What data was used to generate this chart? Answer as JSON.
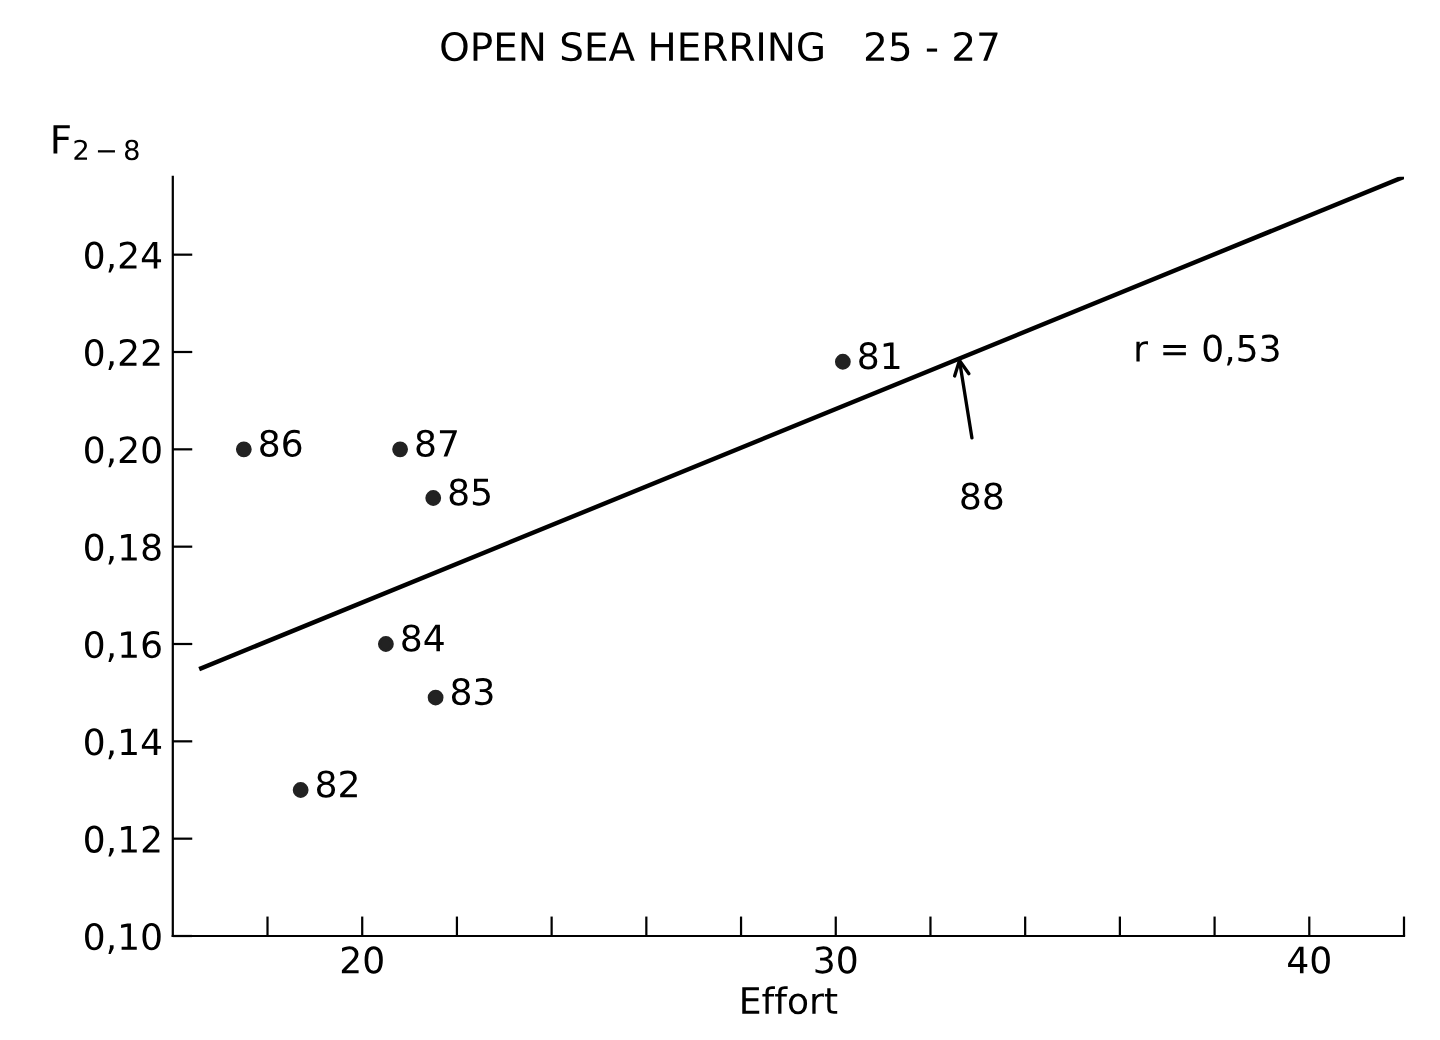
{
  "chart_data": {
    "type": "scatter",
    "title": "OPEN SEA HERRING   25 - 27",
    "xlabel": "Effort",
    "ylabel": "F$_{2−8}$",
    "x": [
      30.15,
      18.7,
      21.55,
      20.5,
      21.5,
      17.5,
      20.8
    ],
    "series": [
      {
        "color": "#222222",
        "values": [
          0.218,
          0.13,
          0.149,
          0.16,
          0.19,
          0.2,
          0.2
        ],
        "marker": "circle"
      },
      {
        "type": "line",
        "color": "#000000",
        "x": [
          16.6,
          42
        ],
        "values": [
          0.155,
          0.256
        ],
        "marker": "none",
        "line_style": "solid"
      }
    ],
    "annotations": [
      "r = 0,53",
      {
        "text": "88",
        "x": 32.6,
        "y": 0.219
      },
      {
        "text": "81",
        "x": 30.15,
        "y": 0.218
      },
      {
        "text": "82",
        "x": 18.7,
        "y": 0.13
      },
      {
        "text": "83",
        "x": 21.55,
        "y": 0.149
      },
      {
        "text": "84",
        "x": 20.5,
        "y": 0.16
      },
      {
        "text": "85",
        "x": 21.5,
        "y": 0.19
      },
      {
        "text": "86",
        "x": 17.5,
        "y": 0.2
      },
      {
        "text": "87",
        "x": 20.8,
        "y": 0.2
      }
    ],
    "xlim": [
      16,
      42
    ],
    "ylim": [
      0.1,
      0.256
    ],
    "xticks": [
      {
        "value": 18,
        "label": null
      },
      20,
      {
        "value": 22,
        "label": null
      },
      {
        "value": 24,
        "label": null
      },
      {
        "value": 26,
        "label": null
      },
      {
        "value": 28,
        "label": null
      },
      30,
      {
        "value": 32,
        "label": null
      },
      {
        "value": 34,
        "label": null
      },
      {
        "value": 36,
        "label": null
      },
      {
        "value": 38,
        "label": null
      },
      40,
      {
        "value": 42,
        "label": null
      }
    ],
    "yticks": [
      {
        "value": 0.1,
        "label": "0,10"
      },
      {
        "value": 0.12,
        "label": "0,12"
      },
      {
        "value": 0.14,
        "label": "0,14"
      },
      {
        "value": 0.16,
        "label": "0,16"
      },
      {
        "value": 0.18,
        "label": "0,18"
      },
      {
        "value": 0.2,
        "label": "0,20"
      },
      {
        "value": 0.22,
        "label": "0,22"
      },
      {
        "value": 0.24,
        "label": "0,24"
      }
    ],
    "grid": false,
    "legend": false
  }
}
